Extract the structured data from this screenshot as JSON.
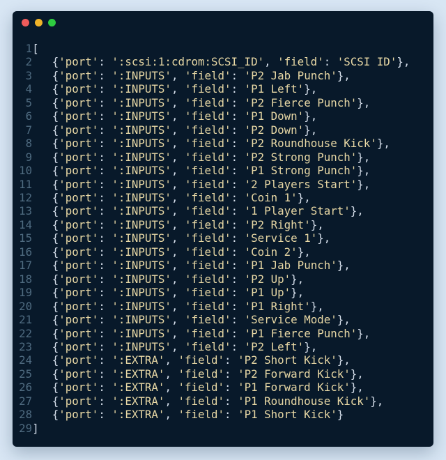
{
  "window": {
    "page_background": "#d8e6f4",
    "background": "#08192a",
    "traffic_lights": [
      {
        "name": "close",
        "color": "#ef5b5b"
      },
      {
        "name": "minimize",
        "color": "#f0b429"
      },
      {
        "name": "maximize",
        "color": "#2ecc40"
      }
    ]
  },
  "code": {
    "colors": {
      "line_number": "#4f6b80",
      "punctuation": "#d5deea",
      "string": "#e8d8a5"
    },
    "list_open": "[",
    "list_close": "]",
    "indent": "   ",
    "key_port": "port",
    "key_field": "field",
    "entries": [
      {
        "port": ":scsi:1:cdrom:SCSI_ID",
        "field": "SCSI ID"
      },
      {
        "port": ":INPUTS",
        "field": "P2 Jab Punch"
      },
      {
        "port": ":INPUTS",
        "field": "P1 Left"
      },
      {
        "port": ":INPUTS",
        "field": "P2 Fierce Punch"
      },
      {
        "port": ":INPUTS",
        "field": "P1 Down"
      },
      {
        "port": ":INPUTS",
        "field": "P2 Down"
      },
      {
        "port": ":INPUTS",
        "field": "P2 Roundhouse Kick"
      },
      {
        "port": ":INPUTS",
        "field": "P2 Strong Punch"
      },
      {
        "port": ":INPUTS",
        "field": "P1 Strong Punch"
      },
      {
        "port": ":INPUTS",
        "field": "2 Players Start"
      },
      {
        "port": ":INPUTS",
        "field": "Coin 1"
      },
      {
        "port": ":INPUTS",
        "field": "1 Player Start"
      },
      {
        "port": ":INPUTS",
        "field": "P2 Right"
      },
      {
        "port": ":INPUTS",
        "field": "Service 1"
      },
      {
        "port": ":INPUTS",
        "field": "Coin 2"
      },
      {
        "port": ":INPUTS",
        "field": "P1 Jab Punch"
      },
      {
        "port": ":INPUTS",
        "field": "P2 Up"
      },
      {
        "port": ":INPUTS",
        "field": "P1 Up"
      },
      {
        "port": ":INPUTS",
        "field": "P1 Right"
      },
      {
        "port": ":INPUTS",
        "field": "Service Mode"
      },
      {
        "port": ":INPUTS",
        "field": "P1 Fierce Punch"
      },
      {
        "port": ":INPUTS",
        "field": "P2 Left"
      },
      {
        "port": ":EXTRA",
        "field": "P2 Short Kick"
      },
      {
        "port": ":EXTRA",
        "field": "P2 Forward Kick"
      },
      {
        "port": ":EXTRA",
        "field": "P1 Forward Kick"
      },
      {
        "port": ":EXTRA",
        "field": "P1 Roundhouse Kick"
      },
      {
        "port": ":EXTRA",
        "field": "P1 Short Kick"
      }
    ]
  }
}
